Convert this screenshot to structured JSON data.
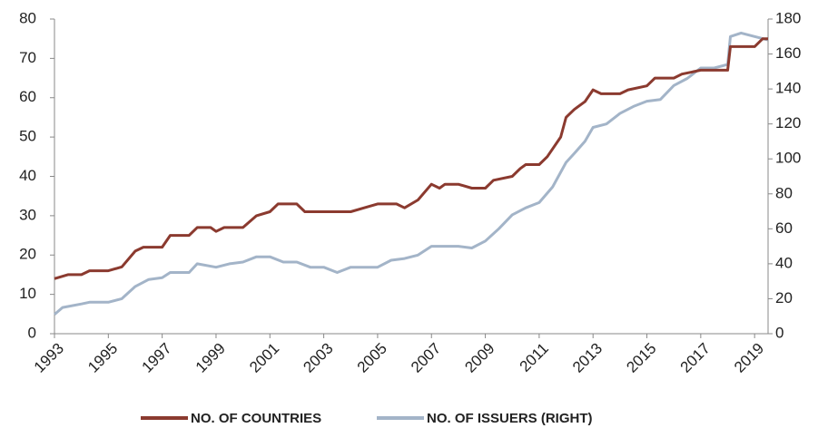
{
  "chart_data": {
    "type": "line",
    "xlim": [
      1993,
      2019.5
    ],
    "xticks": [
      1993,
      1995,
      1997,
      1999,
      2001,
      2003,
      2005,
      2007,
      2009,
      2011,
      2013,
      2015,
      2017,
      2019
    ],
    "ylim": [
      0,
      80
    ],
    "yticks": [
      0,
      10,
      20,
      30,
      40,
      50,
      60,
      70,
      80
    ],
    "y2lim": [
      0,
      180
    ],
    "y2ticks": [
      0,
      20,
      40,
      60,
      80,
      100,
      120,
      140,
      160,
      180
    ],
    "legend": "bottom",
    "series": [
      {
        "name": "NO. OF COUNTRIES",
        "color": "#8b3a2f",
        "x": [
          1993.0,
          1993.5,
          1994.0,
          1994.3,
          1995.0,
          1995.5,
          1996.0,
          1996.3,
          1997.0,
          1997.3,
          1998.0,
          1998.3,
          1998.8,
          1999.0,
          1999.3,
          2000.0,
          2000.5,
          2001.0,
          2001.3,
          2002.0,
          2002.3,
          2003.0,
          2003.5,
          2004.0,
          2004.5,
          2005.0,
          2005.7,
          2006.0,
          2006.5,
          2007.0,
          2007.3,
          2007.5,
          2008.0,
          2008.5,
          2009.0,
          2009.3,
          2010.0,
          2010.3,
          2010.5,
          2011.0,
          2011.3,
          2011.8,
          2012.0,
          2012.3,
          2012.7,
          2013.0,
          2013.3,
          2014.0,
          2014.3,
          2015.0,
          2015.3,
          2016.0,
          2016.3,
          2017.0,
          2017.5,
          2018.0,
          2018.1,
          2019.0,
          2019.3,
          2019.5
        ],
        "values": [
          14,
          15,
          15,
          16,
          16,
          17,
          21,
          22,
          22,
          25,
          25,
          27,
          27,
          26,
          27,
          27,
          30,
          31,
          33,
          33,
          31,
          31,
          31,
          31,
          32,
          33,
          33,
          32,
          34,
          38,
          37,
          38,
          38,
          37,
          37,
          39,
          40,
          42,
          43,
          43,
          45,
          50,
          55,
          57,
          59,
          62,
          61,
          61,
          62,
          63,
          65,
          65,
          66,
          67,
          67,
          67,
          73,
          73,
          75,
          75
        ]
      },
      {
        "name": "NO. OF ISSUERS (RIGHT)",
        "color": "#a3b4c8",
        "axis": "y2",
        "x": [
          1993.0,
          1993.3,
          1994.0,
          1994.3,
          1995.0,
          1995.5,
          1996.0,
          1996.5,
          1997.0,
          1997.3,
          1998.0,
          1998.3,
          1999.0,
          1999.5,
          2000.0,
          2000.5,
          2001.0,
          2001.5,
          2002.0,
          2002.5,
          2003.0,
          2003.5,
          2004.0,
          2004.5,
          2005.0,
          2005.5,
          2006.0,
          2006.5,
          2007.0,
          2007.5,
          2008.0,
          2008.5,
          2009.0,
          2009.5,
          2010.0,
          2010.5,
          2011.0,
          2011.5,
          2012.0,
          2012.3,
          2012.7,
          2013.0,
          2013.5,
          2014.0,
          2014.5,
          2015.0,
          2015.5,
          2016.0,
          2016.5,
          2017.0,
          2017.5,
          2018.0,
          2018.1,
          2018.5,
          2019.0,
          2019.5
        ],
        "values": [
          11,
          15,
          17,
          18,
          18,
          20,
          27,
          31,
          32,
          35,
          35,
          40,
          38,
          40,
          41,
          44,
          44,
          41,
          41,
          38,
          38,
          35,
          38,
          38,
          38,
          42,
          43,
          45,
          50,
          50,
          50,
          49,
          53,
          60,
          68,
          72,
          75,
          84,
          98,
          103,
          110,
          118,
          120,
          126,
          130,
          133,
          134,
          142,
          146,
          152,
          152,
          154,
          170,
          172,
          170,
          168
        ]
      }
    ]
  }
}
